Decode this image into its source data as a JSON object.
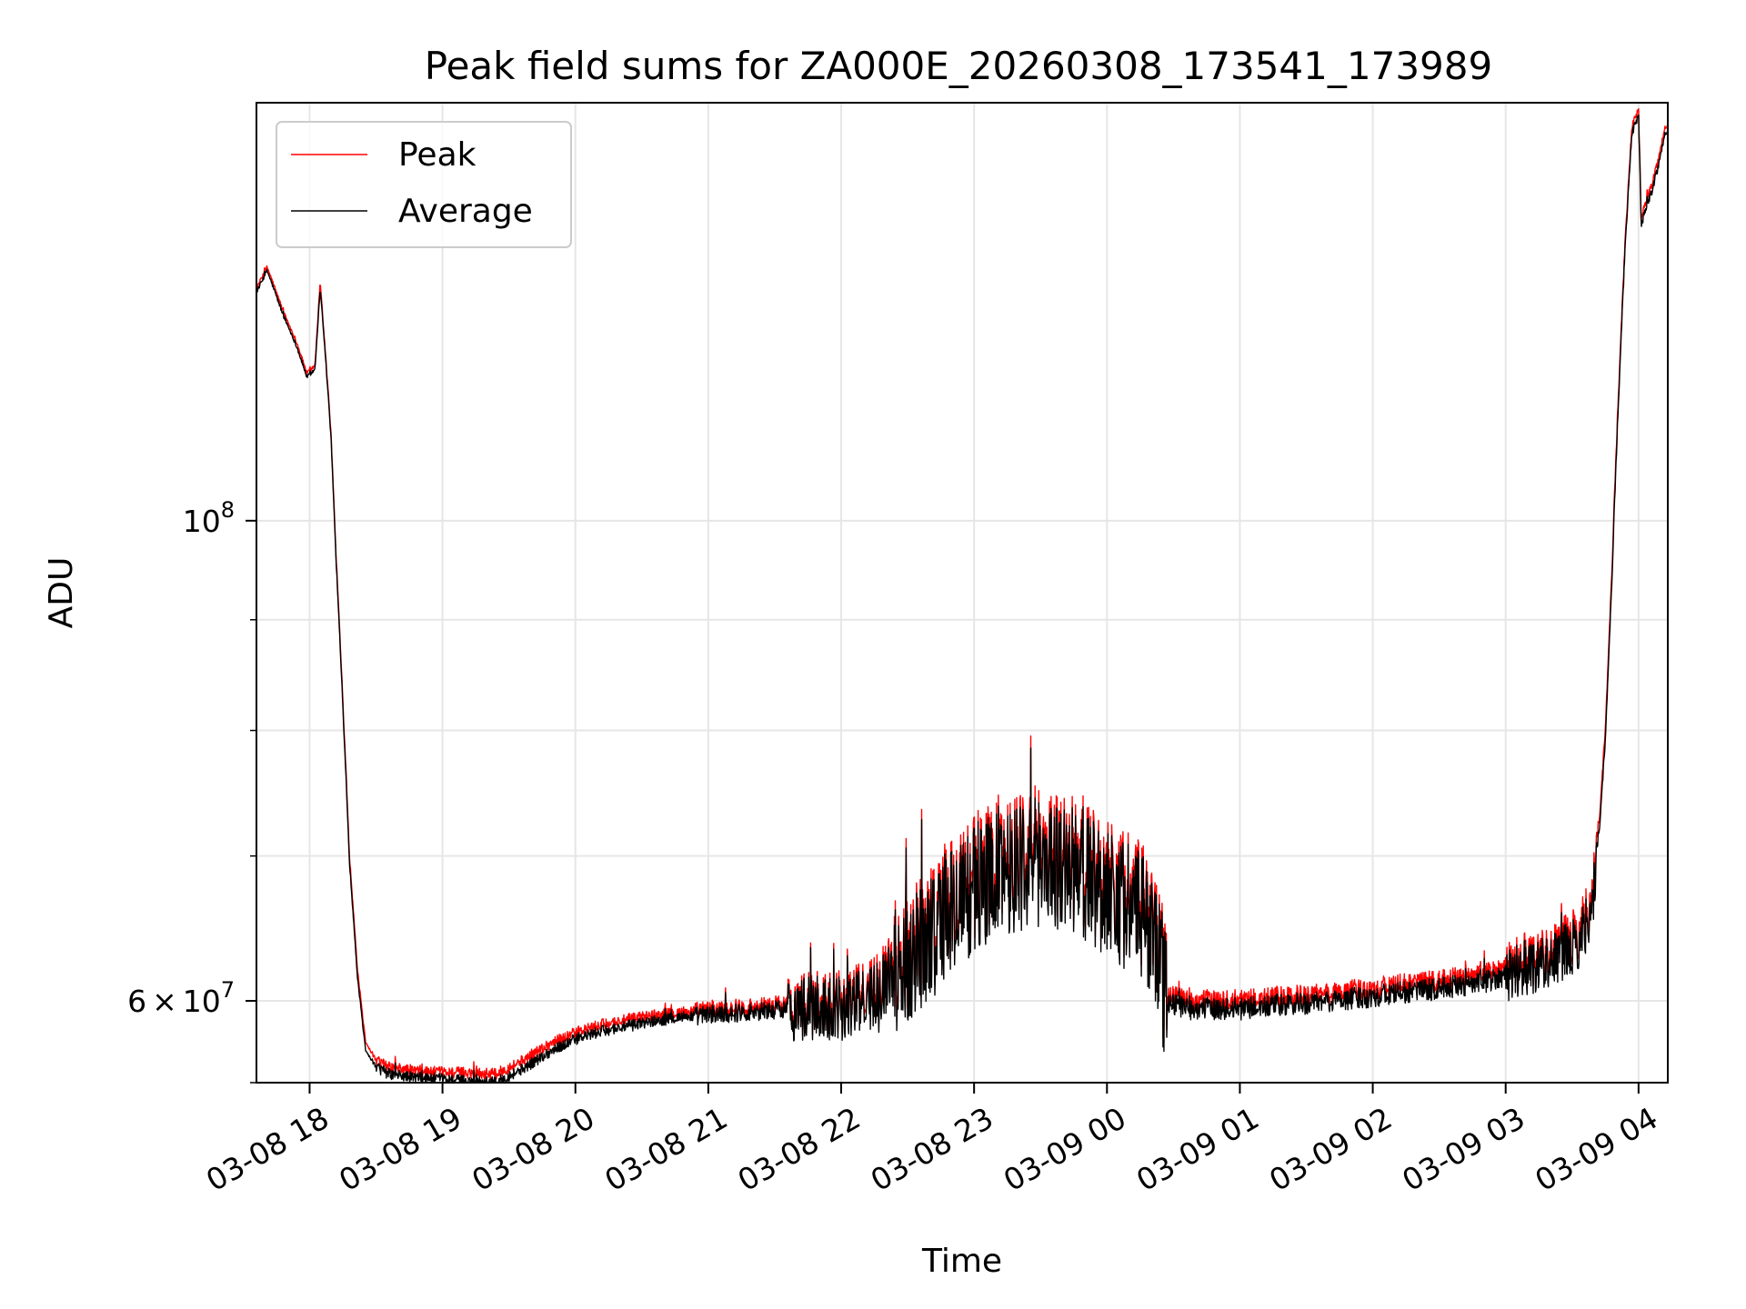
{
  "chart_data": {
    "type": "line",
    "title": "Peak field sums for ZA000E_20260308_173541_173989",
    "xlabel": "Time",
    "ylabel": "ADU",
    "x_unit": "hours since 03-08 00:00",
    "xlim": [
      17.6,
      28.22
    ],
    "ylim": [
      55000000,
      156000000
    ],
    "yscale": "log",
    "grid": true,
    "legend_position": "upper-left",
    "x_ticks": [
      {
        "value": 18,
        "label": "03-08 18"
      },
      {
        "value": 19,
        "label": "03-08 19"
      },
      {
        "value": 20,
        "label": "03-08 20"
      },
      {
        "value": 21,
        "label": "03-08 21"
      },
      {
        "value": 22,
        "label": "03-08 22"
      },
      {
        "value": 23,
        "label": "03-08 23"
      },
      {
        "value": 24,
        "label": "03-09 00"
      },
      {
        "value": 25,
        "label": "03-09 01"
      },
      {
        "value": 26,
        "label": "03-09 02"
      },
      {
        "value": 27,
        "label": "03-09 03"
      },
      {
        "value": 28,
        "label": "03-09 04"
      }
    ],
    "y_major_ticks": [
      {
        "value": 100000000,
        "base": "10",
        "exp": "8"
      },
      {
        "value": 60000000,
        "mant": "6",
        "times": "×",
        "base": "10",
        "exp": "7"
      }
    ],
    "y_minor_ticks": [
      55000000,
      70000000,
      80000000,
      90000000
    ],
    "series": [
      {
        "name": "Peak",
        "color": "#ff0000",
        "x": [
          17.6,
          17.68,
          17.72,
          17.8,
          17.9,
          17.98,
          18.04,
          18.08,
          18.1,
          18.13,
          18.16,
          18.2,
          18.26,
          18.3,
          18.36,
          18.42,
          18.5,
          18.6,
          18.8,
          19.0,
          19.2,
          19.4,
          19.6,
          19.8,
          20.0,
          20.2,
          20.5,
          20.8,
          21.0,
          21.3,
          21.6,
          21.8,
          22.0,
          22.2,
          22.4,
          22.6,
          22.8,
          23.0,
          23.2,
          23.4,
          23.6,
          23.8,
          24.0,
          24.2,
          24.35,
          24.45,
          24.6,
          24.8,
          25.0,
          25.3,
          25.6,
          25.9,
          26.2,
          26.5,
          26.8,
          27.0,
          27.2,
          27.4,
          27.55,
          27.65,
          27.7,
          27.75,
          27.8,
          27.85,
          27.9,
          27.95,
          28.0,
          28.02,
          28.05,
          28.1,
          28.15,
          28.2
        ],
        "y": [
          128000000,
          131000000,
          129000000,
          125000000,
          121000000,
          117000000,
          118000000,
          129000000,
          124000000,
          117000000,
          110000000,
          96000000,
          80000000,
          70000000,
          62000000,
          57500000,
          56300000,
          55900000,
          55700000,
          55600000,
          55600000,
          55500000,
          56300000,
          57300000,
          58000000,
          58500000,
          59000000,
          59300000,
          59400000,
          59600000,
          59800000,
          59800000,
          60000000,
          60500000,
          62500000,
          64500000,
          66500000,
          68500000,
          70000000,
          70500000,
          70500000,
          69500000,
          68500000,
          67000000,
          65500000,
          60500000,
          60000000,
          60000000,
          60000000,
          60200000,
          60400000,
          60700000,
          61000000,
          61300000,
          61600000,
          62200000,
          62800000,
          63500000,
          64500000,
          67000000,
          72000000,
          80000000,
          95000000,
          115000000,
          135000000,
          152000000,
          155000000,
          138000000,
          140000000,
          143000000,
          147000000,
          152000000
        ]
      },
      {
        "name": "Average",
        "color": "#000000",
        "x": [
          17.6,
          17.68,
          17.72,
          17.8,
          17.9,
          17.98,
          18.04,
          18.08,
          18.1,
          18.13,
          18.16,
          18.2,
          18.26,
          18.3,
          18.36,
          18.42,
          18.5,
          18.6,
          18.8,
          19.0,
          19.2,
          19.4,
          19.6,
          19.8,
          20.0,
          20.2,
          20.5,
          20.8,
          21.0,
          21.3,
          21.6,
          21.8,
          22.0,
          22.2,
          22.4,
          22.6,
          22.8,
          23.0,
          23.2,
          23.4,
          23.6,
          23.8,
          24.0,
          24.2,
          24.35,
          24.45,
          24.6,
          24.8,
          25.0,
          25.3,
          25.6,
          25.9,
          26.2,
          26.5,
          26.8,
          27.0,
          27.2,
          27.4,
          27.55,
          27.65,
          27.7,
          27.75,
          27.8,
          27.85,
          27.9,
          27.95,
          28.0,
          28.02,
          28.05,
          28.1,
          28.15,
          28.2
        ],
        "y": [
          127500000,
          130500000,
          128500000,
          124500000,
          120500000,
          116500000,
          117500000,
          128000000,
          123500000,
          116500000,
          109500000,
          95500000,
          79500000,
          69500000,
          61500000,
          57000000,
          55900000,
          55500000,
          55300000,
          55200000,
          55100000,
          55000000,
          55800000,
          56800000,
          57600000,
          58100000,
          58600000,
          59000000,
          59100000,
          59300000,
          59500000,
          59500000,
          59600000,
          60000000,
          61900000,
          63800000,
          65800000,
          67700000,
          69200000,
          69600000,
          69600000,
          68700000,
          67700000,
          66200000,
          64800000,
          60000000,
          59500000,
          59500000,
          59500000,
          59700000,
          59900000,
          60200000,
          60500000,
          60800000,
          61100000,
          61700000,
          62300000,
          62900000,
          63800000,
          66300000,
          71200000,
          79000000,
          94000000,
          114000000,
          134000000,
          151000000,
          154000000,
          137000000,
          139000000,
          142000000,
          146000000,
          151000000
        ]
      }
    ]
  }
}
